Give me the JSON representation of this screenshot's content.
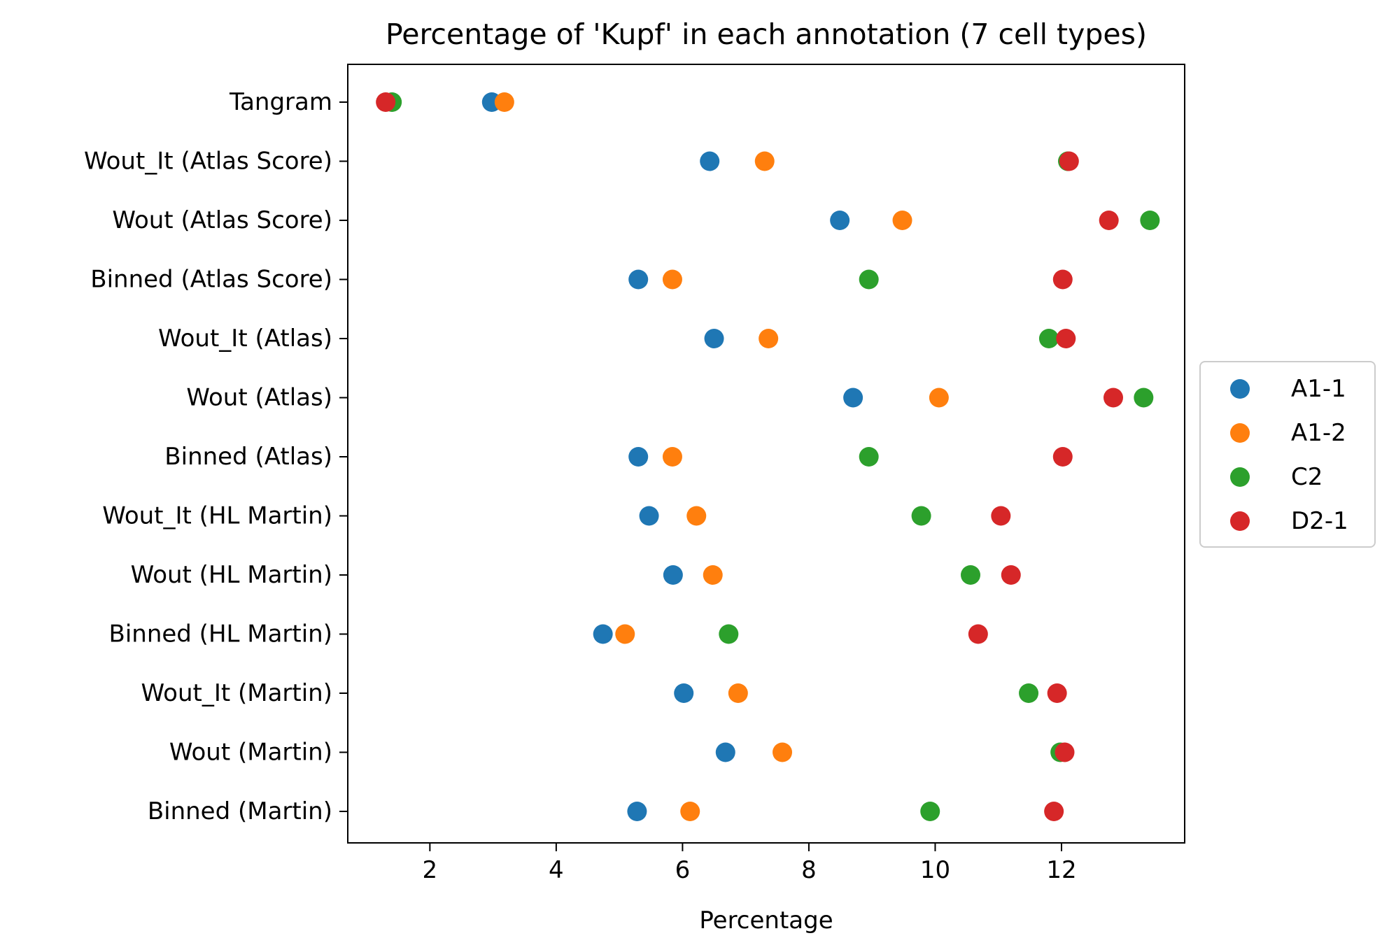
{
  "chart_data": {
    "type": "scatter",
    "title": "Percentage of 'Kupf' in each annotation (7 cell types)",
    "xlabel": "Percentage",
    "ylabel": "",
    "xlim": [
      0.7,
      13.95
    ],
    "xticks": [
      2,
      4,
      6,
      8,
      10,
      12
    ],
    "categories": [
      "Tangram",
      "Wout_It (Atlas Score)",
      "Wout (Atlas Score)",
      "Binned (Atlas Score)",
      "Wout_It (Atlas)",
      "Wout (Atlas)",
      "Binned (Atlas)",
      "Wout_It (HL Martin)",
      "Wout (HL Martin)",
      "Binned (HL Martin)",
      "Wout_It (Martin)",
      "Wout (Martin)",
      "Binned (Martin)"
    ],
    "grid": false,
    "legend_position": "right",
    "series": [
      {
        "name": "A1-1",
        "color": "#1f77b4",
        "values": [
          2.98,
          6.43,
          8.49,
          5.3,
          6.5,
          8.7,
          5.3,
          5.47,
          5.85,
          4.74,
          6.02,
          6.68,
          5.28
        ]
      },
      {
        "name": "A1-2",
        "color": "#ff7f0e",
        "values": [
          3.18,
          7.3,
          9.48,
          5.84,
          7.36,
          10.06,
          5.84,
          6.22,
          6.48,
          5.09,
          6.88,
          7.58,
          6.12
        ]
      },
      {
        "name": "C2",
        "color": "#2ca02c",
        "values": [
          1.4,
          12.1,
          13.4,
          8.95,
          11.8,
          13.3,
          8.95,
          9.78,
          10.56,
          6.73,
          11.48,
          11.98,
          9.92
        ]
      },
      {
        "name": "D2-1",
        "color": "#d62728",
        "values": [
          1.3,
          12.12,
          12.75,
          12.02,
          12.07,
          12.82,
          12.02,
          11.04,
          11.2,
          10.68,
          11.93,
          12.05,
          11.88
        ]
      }
    ]
  }
}
